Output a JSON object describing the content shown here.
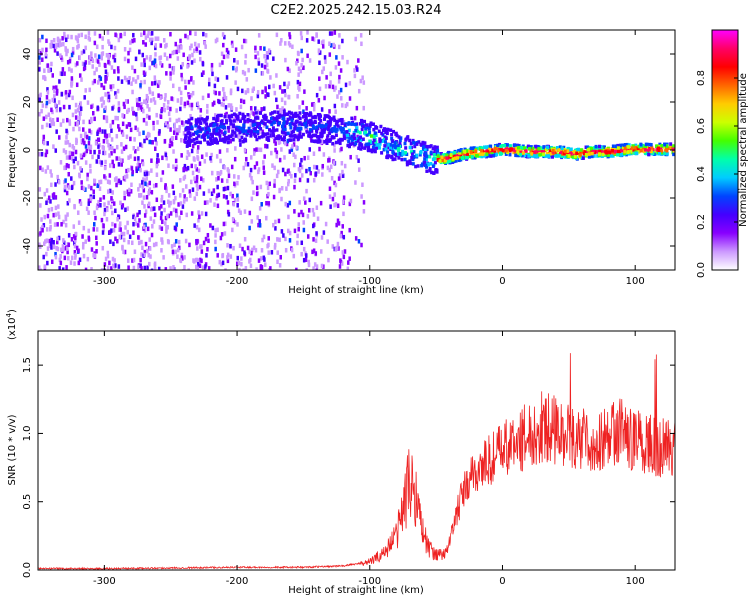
{
  "title": "C2E2.2025.242.15.03.R24",
  "chart_data": [
    {
      "type": "heatmap",
      "xlabel": "Height of straight line (km)",
      "ylabel": "Frequency (Hz)",
      "xlim": [
        -350,
        130
      ],
      "ylim": [
        -50,
        50
      ],
      "x_ticks": [
        -300,
        -200,
        -100,
        0,
        100
      ],
      "y_ticks": [
        -40,
        -20,
        0,
        20,
        40
      ],
      "colorbar": {
        "label": "Normalized spectral amplitude",
        "range": [
          0.0,
          1.0
        ],
        "ticks": [
          "0.0",
          "0.2",
          "0.4",
          "0.6",
          "0.8"
        ],
        "colors": [
          "#ffffff",
          "#cc99ff",
          "#8800ff",
          "#4400ff",
          "#0044ff",
          "#00ccff",
          "#00ffaa",
          "#44ff00",
          "#ccff00",
          "#ffcc00",
          "#ff6600",
          "#ff0000",
          "#ff0066",
          "#ff00ff"
        ]
      },
      "ridge": {
        "x": [
          -240,
          -200,
          -170,
          -140,
          -115,
          -100,
          -85,
          -70,
          -55,
          -45,
          -30,
          -15,
          0,
          20,
          40,
          55,
          65,
          80,
          95,
          110,
          130
        ],
        "y": [
          8,
          10,
          11,
          10,
          8,
          6,
          3,
          0,
          -3,
          -3,
          -1,
          0,
          1,
          0,
          0,
          -1,
          0,
          0,
          1,
          1,
          1
        ]
      }
    },
    {
      "type": "line",
      "xlabel": "Height of straight line (km)",
      "ylabel": "SNR (10 * v/v)",
      "multiplier": "(x10",
      "multiplier_exp": "4",
      "xlim": [
        -350,
        130
      ],
      "ylim": [
        0.0,
        1.75
      ],
      "x_ticks": [
        -300,
        -200,
        -100,
        0,
        100
      ],
      "y_ticks": [
        "0.0",
        "0.5",
        "1.0",
        "1.5"
      ],
      "series": [
        {
          "name": "SNR",
          "color": "#ee2222",
          "x": [
            -350,
            -300,
            -250,
            -200,
            -150,
            -120,
            -100,
            -90,
            -80,
            -75,
            -70,
            -65,
            -60,
            -55,
            -50,
            -45,
            -40,
            -35,
            -30,
            -25,
            -20,
            -10,
            0,
            10,
            20,
            30,
            40,
            50,
            60,
            70,
            80,
            90,
            100,
            110,
            120,
            130
          ],
          "y": [
            0.01,
            0.01,
            0.015,
            0.02,
            0.02,
            0.03,
            0.06,
            0.12,
            0.25,
            0.45,
            0.65,
            0.55,
            0.28,
            0.15,
            0.12,
            0.1,
            0.2,
            0.4,
            0.55,
            0.65,
            0.72,
            0.8,
            0.88,
            0.92,
            1.0,
            1.05,
            1.02,
            0.98,
            0.95,
            0.92,
            1.0,
            1.02,
            0.95,
            0.92,
            0.9,
            0.9
          ]
        }
      ]
    }
  ]
}
